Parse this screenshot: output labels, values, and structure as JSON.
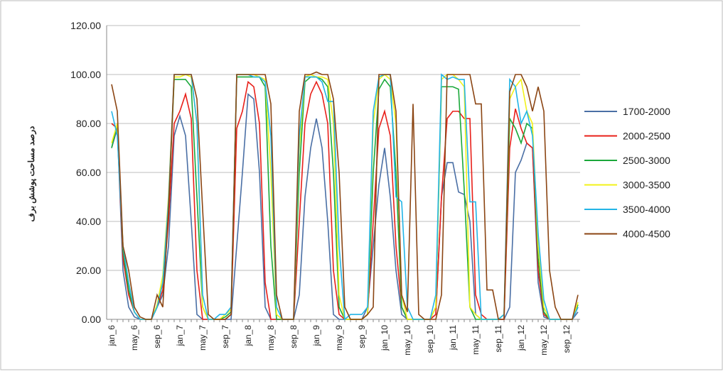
{
  "chart_data": {
    "type": "line",
    "ylabel": "درصد مساحت پوشش برف",
    "categories": [
      "jan_6",
      null,
      null,
      null,
      "may_6",
      null,
      null,
      null,
      "sep_6",
      null,
      null,
      null,
      "jan_7",
      null,
      null,
      null,
      "may_7",
      null,
      null,
      null,
      "sep_7",
      null,
      null,
      null,
      "jan_8",
      null,
      null,
      null,
      "may_8",
      null,
      null,
      null,
      "sep_8",
      null,
      null,
      null,
      "jan_9",
      null,
      null,
      null,
      "may_9",
      null,
      null,
      null,
      "sep_9",
      null,
      null,
      null,
      "jan_10",
      null,
      null,
      null,
      "may_10",
      null,
      null,
      null,
      "sep_10",
      null,
      null,
      null,
      "jan_11",
      null,
      null,
      null,
      "may_11",
      null,
      null,
      null,
      "sep_11",
      null,
      null,
      null,
      "jan_12",
      null,
      null,
      null,
      "may_12",
      null,
      null,
      null,
      "sep_12",
      null,
      null
    ],
    "series": [
      {
        "name": "1700-2000",
        "color": "#4a6fa5",
        "values": [
          70,
          78,
          20,
          5,
          1,
          0,
          0,
          0,
          5,
          10,
          30,
          75,
          83,
          75,
          40,
          2,
          0,
          0,
          0,
          0,
          0,
          0,
          30,
          60,
          92,
          90,
          60,
          5,
          0,
          0,
          0,
          0,
          0,
          10,
          50,
          70,
          82,
          70,
          40,
          2,
          0,
          0,
          0,
          0,
          0,
          5,
          30,
          55,
          70,
          50,
          20,
          2,
          0,
          0,
          0,
          0,
          0,
          2,
          50,
          64,
          64,
          52,
          51,
          40,
          2,
          0,
          0,
          0,
          0,
          0,
          5,
          60,
          65,
          72,
          70,
          15,
          1,
          0,
          0,
          0,
          0,
          0,
          3
        ]
      },
      {
        "name": "2000-2500",
        "color": "#e8201a",
        "values": [
          80,
          78,
          25,
          10,
          3,
          0,
          0,
          0,
          5,
          12,
          40,
          80,
          85,
          92,
          82,
          20,
          0,
          0,
          0,
          0,
          0,
          2,
          78,
          85,
          97,
          95,
          80,
          15,
          0,
          0,
          0,
          0,
          0,
          40,
          80,
          92,
          97,
          92,
          80,
          20,
          2,
          0,
          0,
          0,
          0,
          2,
          40,
          78,
          85,
          75,
          30,
          5,
          0,
          0,
          0,
          0,
          0,
          2,
          50,
          82,
          85,
          85,
          82,
          82,
          10,
          2,
          0,
          0,
          0,
          0,
          70,
          86,
          78,
          72,
          70,
          20,
          2,
          0,
          0,
          0,
          0,
          0,
          5
        ]
      },
      {
        "name": "2500-3000",
        "color": "#1aa83a",
        "values": [
          70,
          80,
          28,
          12,
          3,
          0,
          0,
          0,
          5,
          15,
          45,
          98,
          98,
          98,
          95,
          50,
          5,
          0,
          0,
          0,
          1,
          3,
          99,
          99,
          99,
          99,
          99,
          95,
          30,
          0,
          0,
          0,
          0,
          60,
          97,
          99,
          99,
          98,
          95,
          60,
          5,
          0,
          0,
          0,
          0,
          2,
          60,
          94,
          98,
          95,
          60,
          5,
          0,
          0,
          0,
          0,
          0,
          5,
          95,
          95,
          95,
          94,
          53,
          5,
          0,
          0,
          0,
          0,
          0,
          2,
          82,
          78,
          72,
          80,
          78,
          25,
          3,
          0,
          0,
          0,
          0,
          0,
          6
        ]
      },
      {
        "name": "3000-3500",
        "color": "#f2f21a",
        "values": [
          72,
          80,
          30,
          15,
          3,
          0,
          0,
          0,
          6,
          18,
          50,
          99,
          99,
          100,
          99,
          80,
          5,
          0,
          0,
          0,
          2,
          4,
          100,
          100,
          100,
          100,
          99,
          98,
          60,
          2,
          0,
          0,
          0,
          70,
          99,
          100,
          99,
          99,
          98,
          80,
          10,
          0,
          0,
          0,
          0,
          2,
          80,
          98,
          100,
          98,
          80,
          10,
          0,
          0,
          0,
          0,
          0,
          5,
          98,
          100,
          100,
          98,
          95,
          5,
          2,
          0,
          0,
          0,
          0,
          2,
          90,
          95,
          98,
          85,
          80,
          30,
          5,
          0,
          0,
          0,
          0,
          0,
          7
        ]
      },
      {
        "name": "3500-4000",
        "color": "#22b4e6",
        "values": [
          85,
          75,
          30,
          15,
          3,
          0,
          0,
          0,
          5,
          15,
          48,
          100,
          100,
          100,
          100,
          80,
          10,
          0,
          0,
          2,
          2,
          5,
          100,
          100,
          100,
          99,
          99,
          97,
          75,
          5,
          0,
          0,
          0,
          75,
          99,
          99,
          99,
          97,
          89,
          89,
          30,
          0,
          2,
          2,
          2,
          5,
          85,
          99,
          100,
          100,
          50,
          48,
          5,
          0,
          0,
          0,
          0,
          10,
          100,
          98,
          99,
          98,
          98,
          48,
          48,
          0,
          0,
          0,
          0,
          2,
          98,
          95,
          80,
          85,
          75,
          35,
          8,
          0,
          0,
          0,
          0,
          0,
          5
        ]
      },
      {
        "name": "4000-4500",
        "color": "#8b4513",
        "values": [
          96,
          85,
          30,
          20,
          5,
          1,
          0,
          0,
          10,
          5,
          45,
          100,
          100,
          100,
          100,
          90,
          45,
          2,
          0,
          0,
          0,
          2,
          100,
          100,
          100,
          100,
          100,
          100,
          88,
          10,
          0,
          0,
          0,
          85,
          100,
          100,
          101,
          100,
          100,
          90,
          60,
          5,
          0,
          0,
          0,
          2,
          5,
          100,
          100,
          100,
          85,
          10,
          3,
          88,
          2,
          0,
          0,
          0,
          10,
          100,
          100,
          100,
          100,
          100,
          88,
          88,
          12,
          12,
          0,
          0,
          93,
          100,
          100,
          95,
          85,
          95,
          85,
          20,
          5,
          0,
          0,
          0,
          10
        ]
      }
    ],
    "ylim": [
      0,
      120
    ],
    "yticks": [
      {
        "value": 0,
        "label": "0.00"
      },
      {
        "value": 20,
        "label": "20.00"
      },
      {
        "value": 40,
        "label": "40.00"
      },
      {
        "value": 60,
        "label": "60.00"
      },
      {
        "value": 80,
        "label": "80.00"
      },
      {
        "value": 100,
        "label": "100.00"
      },
      {
        "value": 120,
        "label": "120.00"
      }
    ],
    "grid": true,
    "legend": "right"
  }
}
